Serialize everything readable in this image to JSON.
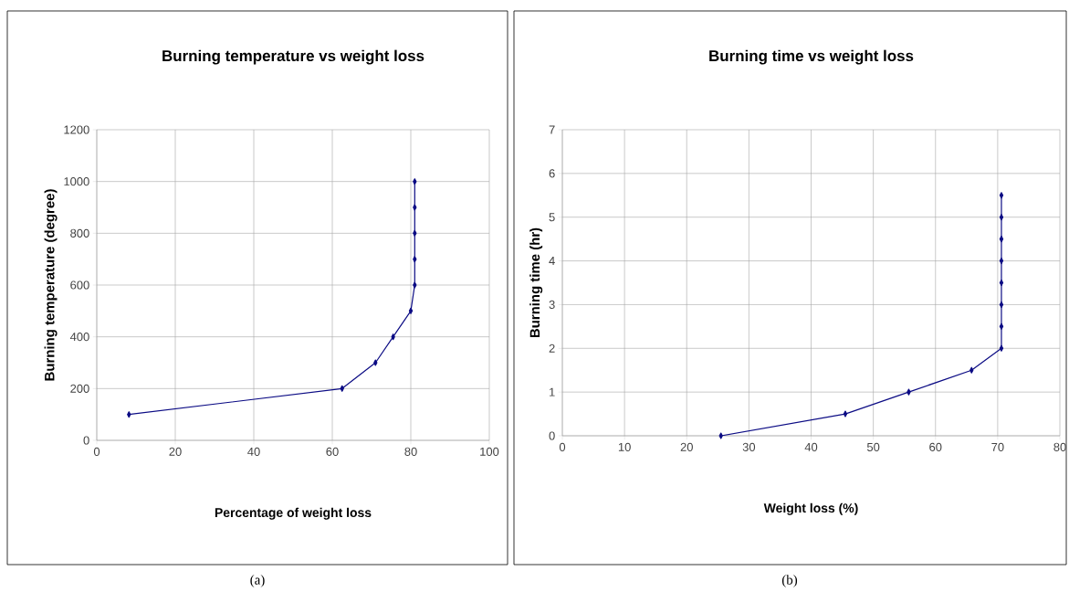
{
  "chart_data": [
    {
      "type": "line",
      "title": "Burning temperature vs weight loss",
      "xlabel": "Percentage of weight loss",
      "ylabel": "Burning temperature (degree)",
      "x": [
        8.2,
        62.5,
        71,
        75.5,
        80,
        81,
        81,
        81,
        81,
        81
      ],
      "series": [
        {
          "color": "#0b0b84",
          "values": [
            100,
            200,
            300,
            400,
            500,
            600,
            700,
            800,
            900,
            1000
          ]
        }
      ],
      "xlim": [
        0,
        100
      ],
      "xticks": [
        0,
        20,
        40,
        60,
        80,
        100
      ],
      "ylim": [
        0,
        1200
      ],
      "yticks": [
        0,
        200,
        400,
        600,
        800,
        1000,
        1200
      ],
      "grid": true,
      "marker": "diamond",
      "line_style": "solid",
      "annotations": [
        "(a)"
      ]
    },
    {
      "type": "line",
      "title": "Burning time vs weight loss",
      "xlabel": "Weight loss (%)",
      "ylabel": "Burning time (hr)",
      "x": [
        25.5,
        45.5,
        55.7,
        65.8,
        70.6,
        70.6,
        70.6,
        70.6,
        70.6,
        70.6,
        70.6,
        70.6
      ],
      "series": [
        {
          "color": "#0b0b84",
          "values": [
            0,
            0.5,
            1,
            1.5,
            2,
            2.5,
            3,
            3.5,
            4,
            4.5,
            5,
            5.5
          ]
        }
      ],
      "xlim": [
        0,
        80
      ],
      "xticks": [
        0,
        10,
        20,
        30,
        40,
        50,
        60,
        70,
        80
      ],
      "ylim": [
        0,
        7
      ],
      "yticks": [
        0,
        1,
        2,
        3,
        4,
        5,
        6,
        7
      ],
      "grid": true,
      "marker": "diamond",
      "line_style": "solid",
      "annotations": [
        "(b)"
      ]
    }
  ]
}
